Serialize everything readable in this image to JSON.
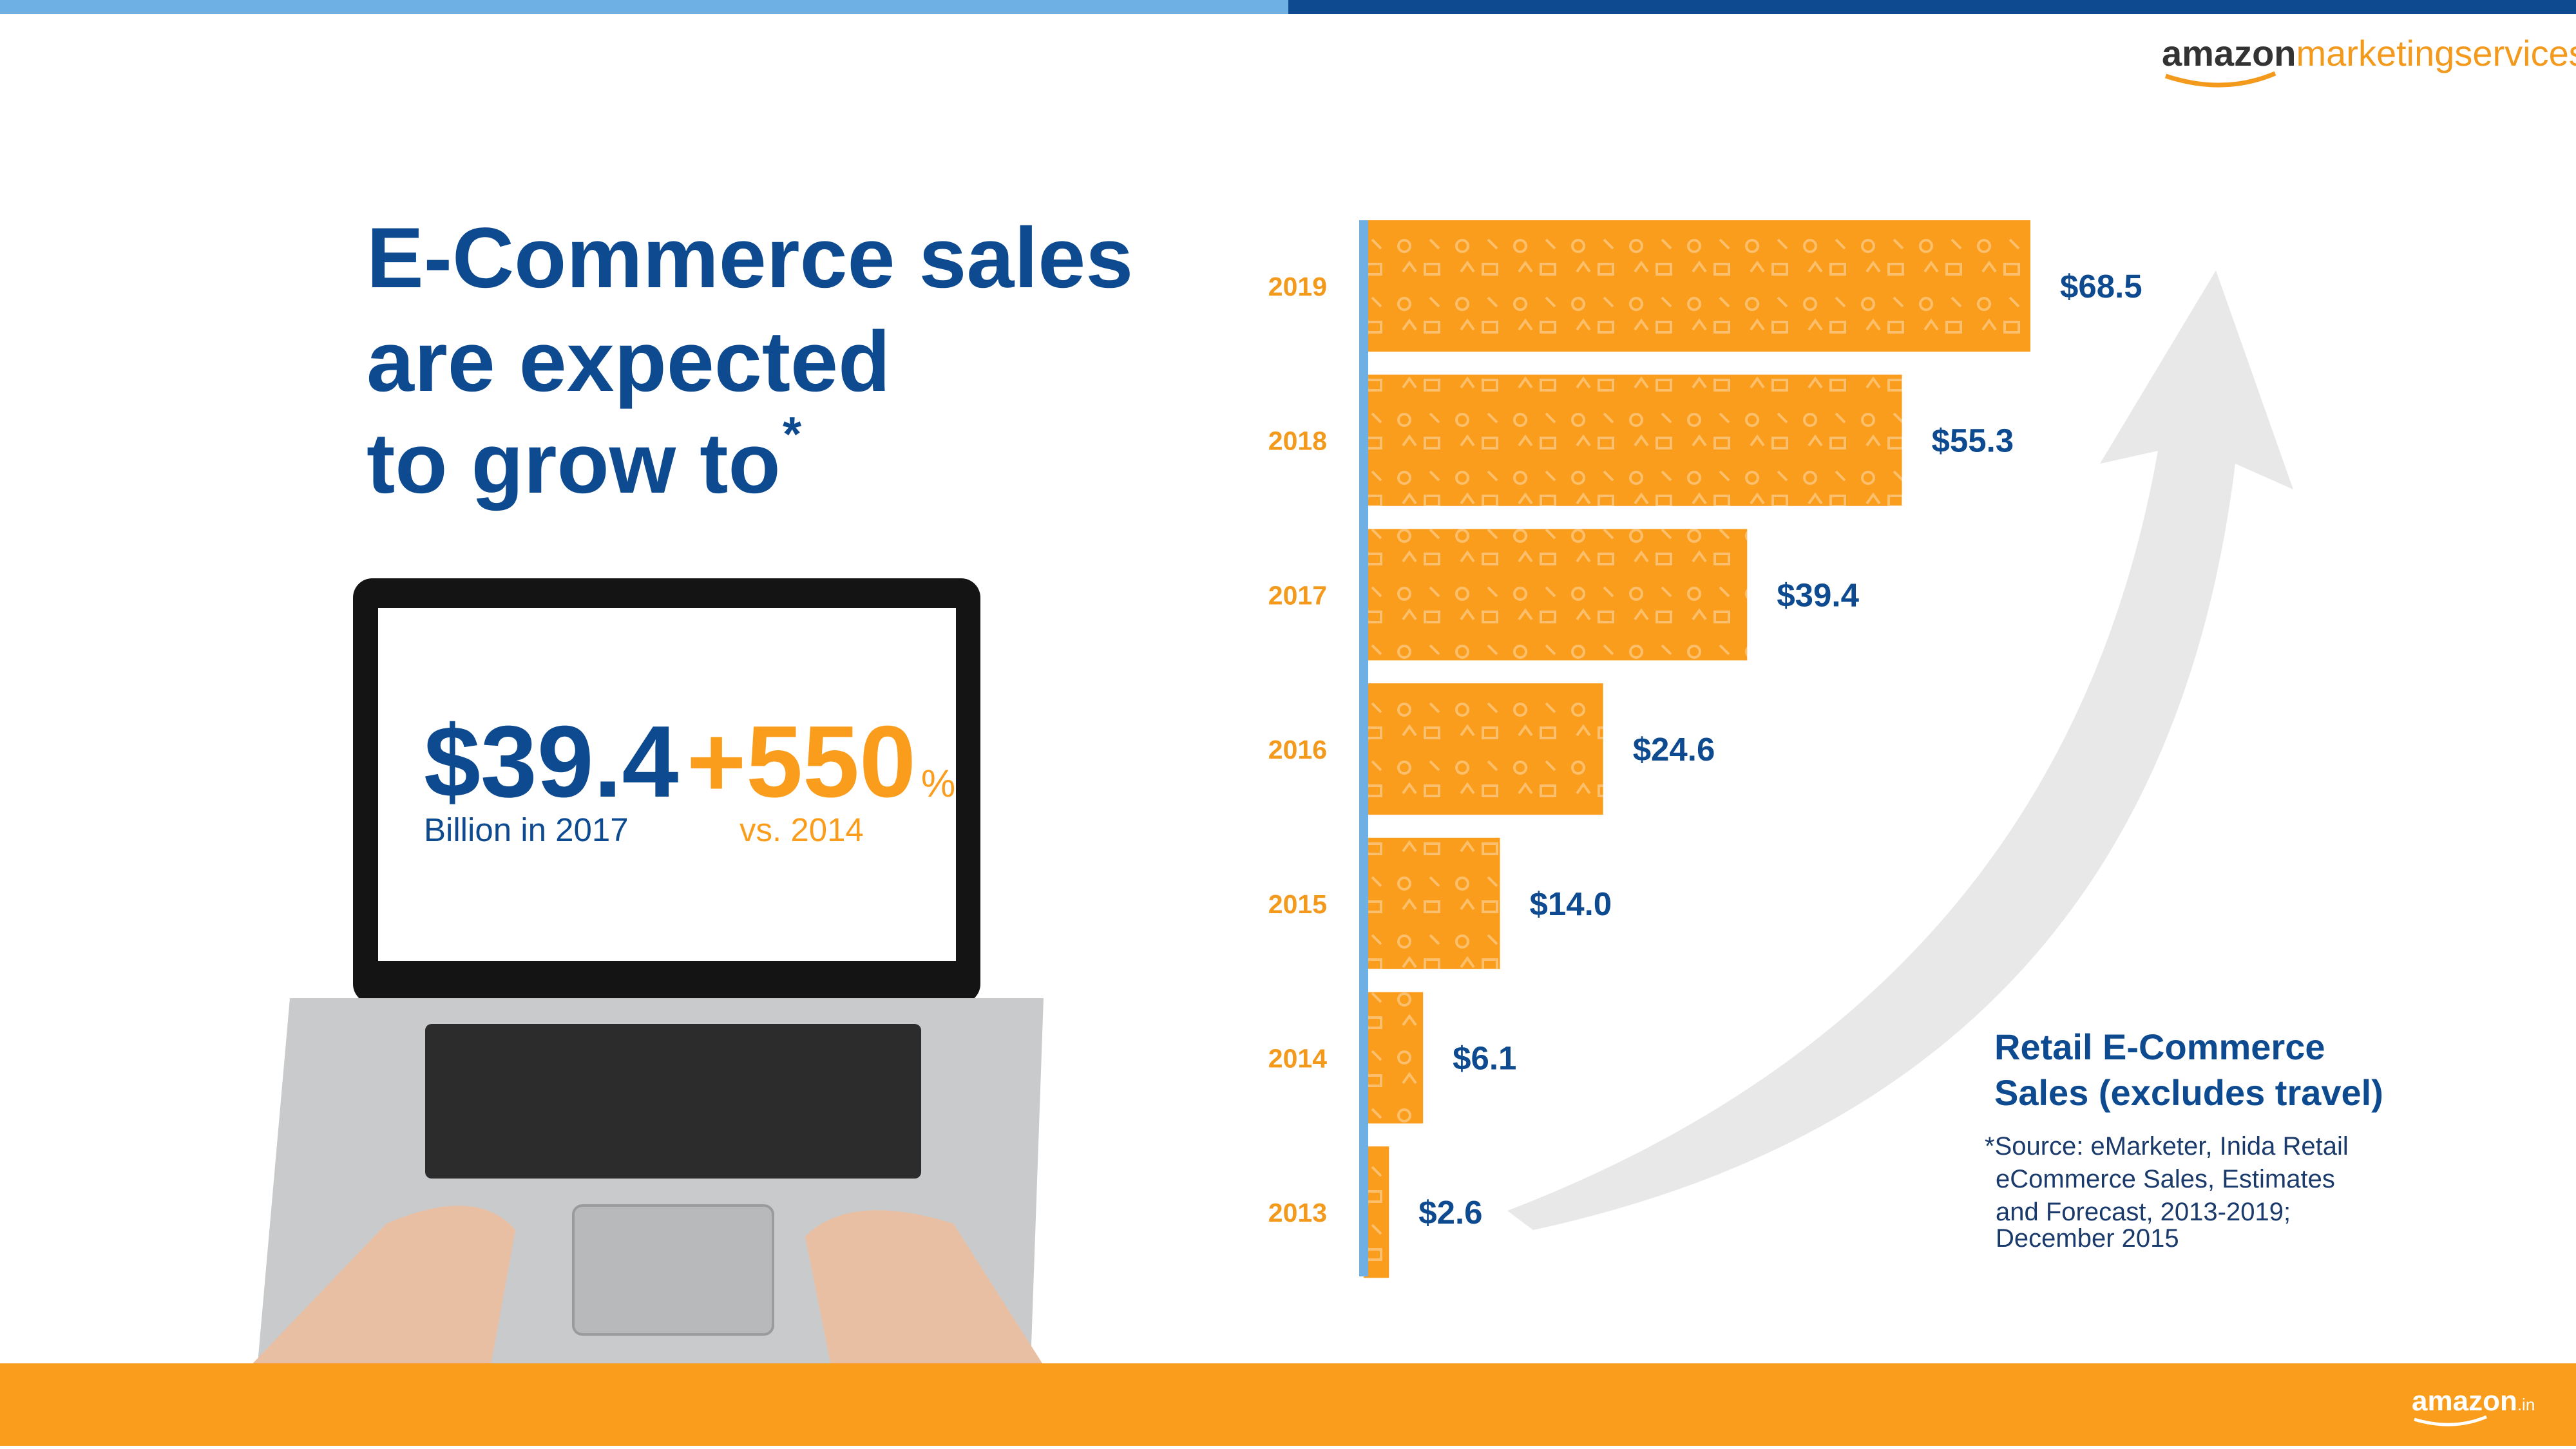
{
  "header": {
    "logo_word": "amazon",
    "logo_suffix": "marketingservices"
  },
  "headline": {
    "lines": [
      "E-Commerce sales",
      "are expected",
      "to grow to"
    ],
    "mark": "*"
  },
  "laptop": {
    "amount": "$39.4",
    "amount_note": "Billion in 2017",
    "growth": "+550",
    "growth_unit": "%",
    "growth_note": "vs. 2014"
  },
  "chart_data": {
    "type": "bar",
    "orientation": "horizontal",
    "categories": [
      "2019",
      "2018",
      "2017",
      "2016",
      "2015",
      "2014",
      "2013"
    ],
    "values": [
      68.5,
      55.3,
      39.4,
      24.6,
      14.0,
      6.1,
      2.6
    ],
    "value_labels": [
      "$68.5",
      "$55.3",
      "$39.4",
      "$24.6",
      "$14.0",
      "$6.1",
      "$2.6"
    ],
    "color": "#fb9d1c",
    "caption": [
      "Retail E-Commerce",
      "Sales (excludes travel)"
    ],
    "source": [
      "*Source: eMarketer, Inida Retail",
      "eCommerce Sales, Estimates",
      "and Forecast, 2013-2019;",
      "December 2015"
    ]
  },
  "footer": {
    "logo_word": "amazon",
    "logo_suffix": ".in"
  }
}
